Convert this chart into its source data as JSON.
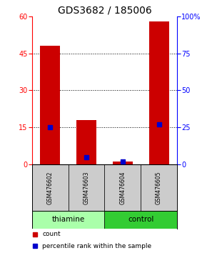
{
  "title": "GDS3682 / 185006",
  "samples": [
    "GSM476602",
    "GSM476603",
    "GSM476604",
    "GSM476605"
  ],
  "counts": [
    48,
    18,
    1,
    58
  ],
  "percentiles": [
    25,
    5,
    2,
    27
  ],
  "left_ylim": [
    0,
    60
  ],
  "right_ylim": [
    0,
    100
  ],
  "left_yticks": [
    0,
    15,
    30,
    45,
    60
  ],
  "right_yticks": [
    0,
    25,
    50,
    75,
    100
  ],
  "right_yticklabels": [
    "0",
    "25",
    "50",
    "75",
    "100%"
  ],
  "bar_color": "#CC0000",
  "dot_color": "#0000CC",
  "bg_color": "#FFFFFF",
  "bar_width": 0.55,
  "label_count": "count",
  "label_percentile": "percentile rank within the sample",
  "sample_bg": "#CCCCCC",
  "thiamine_bg": "#AAFFAA",
  "control_bg": "#33CC33",
  "title_fontsize": 10,
  "tick_fontsize": 7,
  "group_ranges": [
    [
      0,
      1
    ],
    [
      2,
      3
    ]
  ],
  "group_labels": [
    "thiamine",
    "control"
  ],
  "group_colors": [
    "#AAFFAA",
    "#33CC33"
  ]
}
